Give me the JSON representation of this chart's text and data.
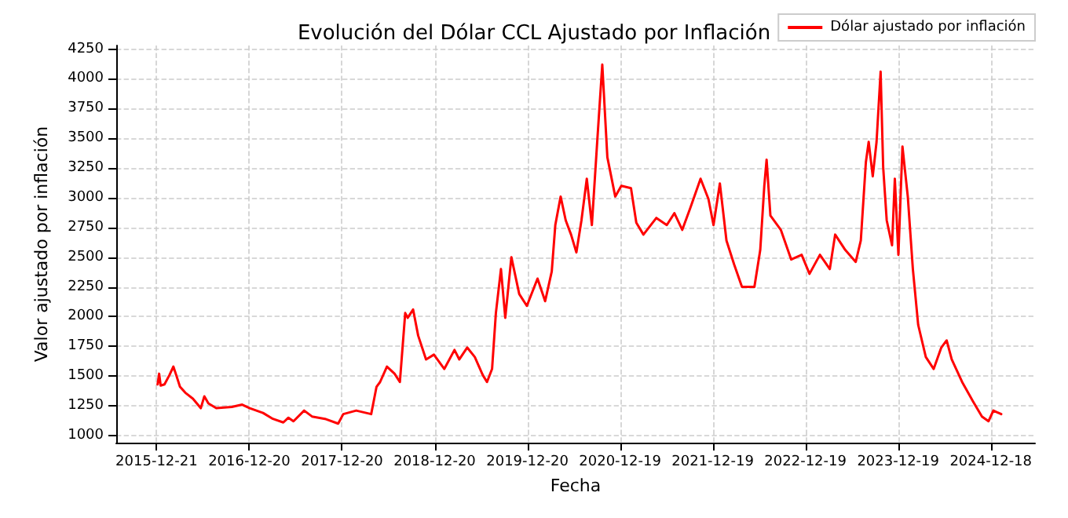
{
  "chart_data": {
    "type": "line",
    "title": "Evolución del Dólar CCL Ajustado por Inflación",
    "xlabel": "Fecha",
    "ylabel": "Valor ajustado por inflación",
    "x": [
      "2015-12-25",
      "2015-12-31",
      "2016-01-06",
      "2016-01-21",
      "2016-02-10",
      "2016-02-25",
      "2016-03-07",
      "2016-03-22",
      "2016-04-12",
      "2016-05-12",
      "2016-06-12",
      "2016-06-26",
      "2016-07-12",
      "2016-08-12",
      "2016-10-12",
      "2016-11-22",
      "2016-12-22",
      "2017-02-12",
      "2017-03-23",
      "2017-05-03",
      "2017-05-23",
      "2017-06-12",
      "2017-07-24",
      "2017-08-24",
      "2017-10-14",
      "2017-12-05",
      "2017-12-25",
      "2018-02-14",
      "2018-04-14",
      "2018-05-05",
      "2018-05-19",
      "2018-06-15",
      "2018-07-15",
      "2018-08-05",
      "2018-08-26",
      "2018-09-05",
      "2018-09-26",
      "2018-10-16",
      "2018-11-16",
      "2018-12-17",
      "2019-01-27",
      "2019-03-08",
      "2019-03-27",
      "2019-04-27",
      "2019-05-27",
      "2019-06-27",
      "2019-07-14",
      "2019-08-03",
      "2019-08-18",
      "2019-09-07",
      "2019-09-24",
      "2019-10-18",
      "2019-11-18",
      "2019-12-18",
      "2020-01-29",
      "2020-02-28",
      "2020-03-25",
      "2020-04-08",
      "2020-04-29",
      "2020-05-19",
      "2020-06-09",
      "2020-06-30",
      "2020-07-20",
      "2020-08-10",
      "2020-08-30",
      "2020-09-20",
      "2020-10-10",
      "2020-10-30",
      "2020-11-30",
      "2020-12-24",
      "2021-01-31",
      "2021-02-21",
      "2021-03-21",
      "2021-05-11",
      "2021-06-21",
      "2021-07-21",
      "2021-08-21",
      "2021-09-21",
      "2021-11-01",
      "2021-12-02",
      "2021-12-22",
      "2022-01-16",
      "2022-02-11",
      "2022-03-13",
      "2022-04-13",
      "2022-06-01",
      "2022-06-24",
      "2022-07-10",
      "2022-07-19",
      "2022-08-03",
      "2022-09-13",
      "2022-10-24",
      "2022-12-04",
      "2023-01-04",
      "2023-02-14",
      "2023-03-25",
      "2023-04-15",
      "2023-05-25",
      "2023-07-05",
      "2023-07-25",
      "2023-08-14",
      "2023-08-25",
      "2023-09-10",
      "2023-09-25",
      "2023-10-11",
      "2023-10-21",
      "2023-11-04",
      "2023-11-25",
      "2023-12-06",
      "2023-12-20",
      "2024-01-05",
      "2024-01-26",
      "2024-02-15",
      "2024-03-07",
      "2024-04-06",
      "2024-05-07",
      "2024-06-06",
      "2024-06-27",
      "2024-07-17",
      "2024-08-27",
      "2024-10-08",
      "2024-11-13",
      "2024-12-09",
      "2024-12-28",
      "2025-01-28"
    ],
    "series": [
      {
        "name": "Dólar ajustado por inflación",
        "color": "#ff0000",
        "values": [
          1430,
          1520,
          1420,
          1430,
          1510,
          1580,
          1510,
          1410,
          1360,
          1310,
          1230,
          1330,
          1270,
          1230,
          1240,
          1260,
          1230,
          1190,
          1140,
          1110,
          1150,
          1120,
          1210,
          1160,
          1140,
          1100,
          1180,
          1210,
          1180,
          1410,
          1450,
          1580,
          1520,
          1450,
          2030,
          1990,
          2060,
          1840,
          1640,
          1680,
          1560,
          1720,
          1640,
          1740,
          1660,
          1510,
          1450,
          1560,
          2030,
          2400,
          1990,
          2500,
          2190,
          2090,
          2320,
          2130,
          2380,
          2770,
          3010,
          2810,
          2690,
          2540,
          2810,
          3160,
          2770,
          3470,
          4120,
          3340,
          3010,
          3100,
          3080,
          2790,
          2690,
          2830,
          2770,
          2870,
          2730,
          2910,
          3160,
          2990,
          2770,
          3120,
          2640,
          2440,
          2250,
          2250,
          2560,
          3100,
          3320,
          2850,
          2730,
          2480,
          2520,
          2360,
          2520,
          2400,
          2690,
          2560,
          2460,
          2640,
          3300,
          3470,
          3180,
          3470,
          4060,
          3260,
          2810,
          2600,
          3160,
          2520,
          3430,
          3010,
          2400,
          1930,
          1660,
          1560,
          1740,
          1800,
          1640,
          1450,
          1290,
          1160,
          1120,
          1210,
          1180
        ]
      }
    ],
    "xlim": [
      "2015-07-15",
      "2025-06-10"
    ],
    "xticks": [
      "2015-12-21",
      "2016-12-20",
      "2017-12-20",
      "2018-12-20",
      "2019-12-20",
      "2020-12-19",
      "2021-12-19",
      "2022-12-19",
      "2023-12-19",
      "2024-12-18"
    ],
    "ylim": [
      940,
      4280
    ],
    "yticks": [
      1000,
      1250,
      1500,
      1750,
      2000,
      2250,
      2500,
      2750,
      3000,
      3250,
      3500,
      3750,
      4000,
      4250
    ],
    "grid": true,
    "legend": "top right",
    "marker": "none",
    "line_style": "solid"
  }
}
